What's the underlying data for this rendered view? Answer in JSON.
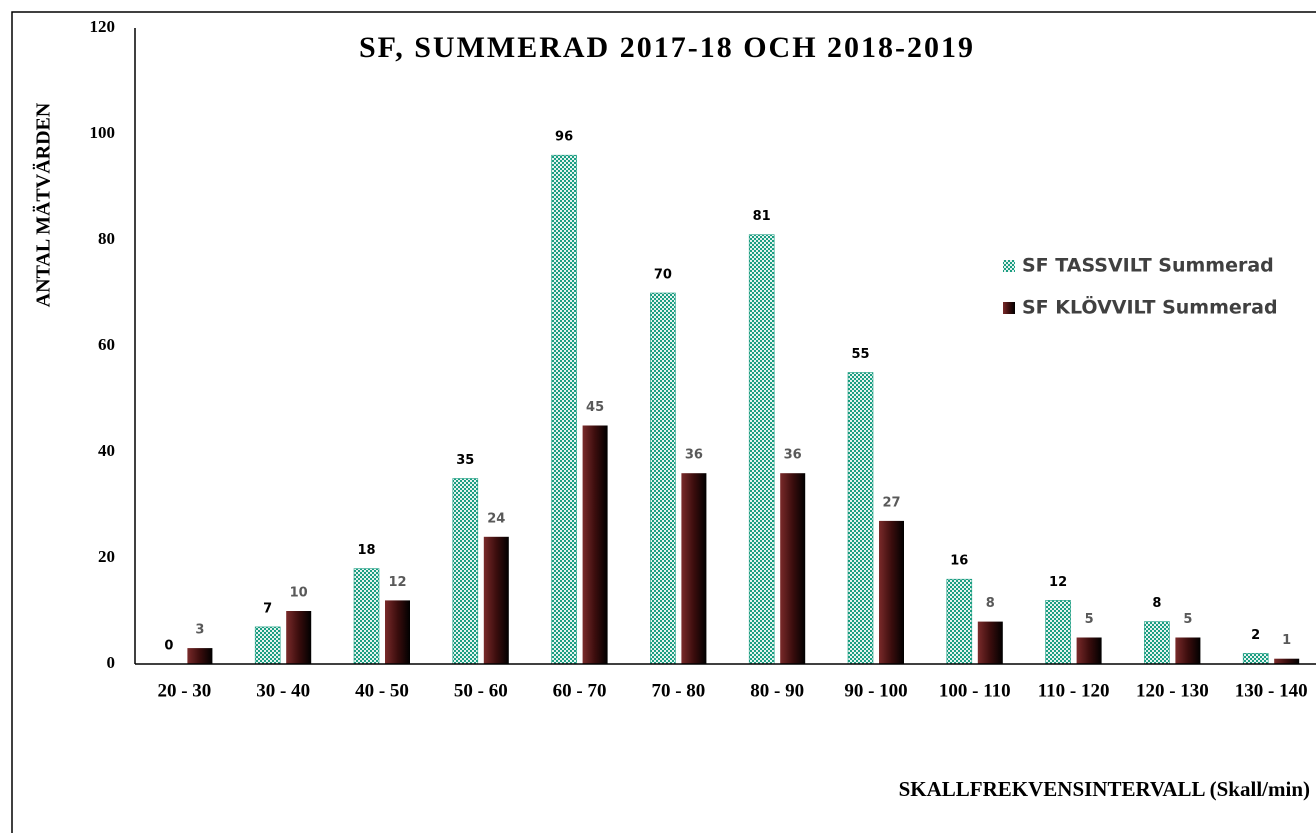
{
  "chart_data": {
    "type": "bar",
    "title": "SF, SUMMERAD 2017-18 OCH 2018-2019",
    "x_label": "SKALLFREKVENSINTERVALL  (Skall/min)",
    "y_label": "ANTAL MÄTVÄRDEN",
    "categories": [
      "20 - 30",
      "30 - 40",
      "40 - 50",
      "50 - 60",
      "60 - 70",
      "70 - 80",
      "80 - 90",
      "90 - 100",
      "100 - 110",
      "110 - 120",
      "120 - 130",
      "130 - 140"
    ],
    "series": [
      {
        "name": "SF TASSVILT Summerad",
        "color": "#1b9e82",
        "values": [
          0,
          7,
          18,
          35,
          96,
          70,
          81,
          55,
          16,
          12,
          8,
          2
        ]
      },
      {
        "name": "SF KLÖVVILT Summerad",
        "color": "#3b0d0d",
        "values": [
          3,
          10,
          12,
          24,
          45,
          36,
          36,
          27,
          8,
          5,
          5,
          1
        ]
      }
    ],
    "ylim": [
      0,
      120
    ],
    "yticks": [
      0,
      20,
      40,
      60,
      80,
      100,
      120
    ],
    "grid": false,
    "legend": "right"
  }
}
